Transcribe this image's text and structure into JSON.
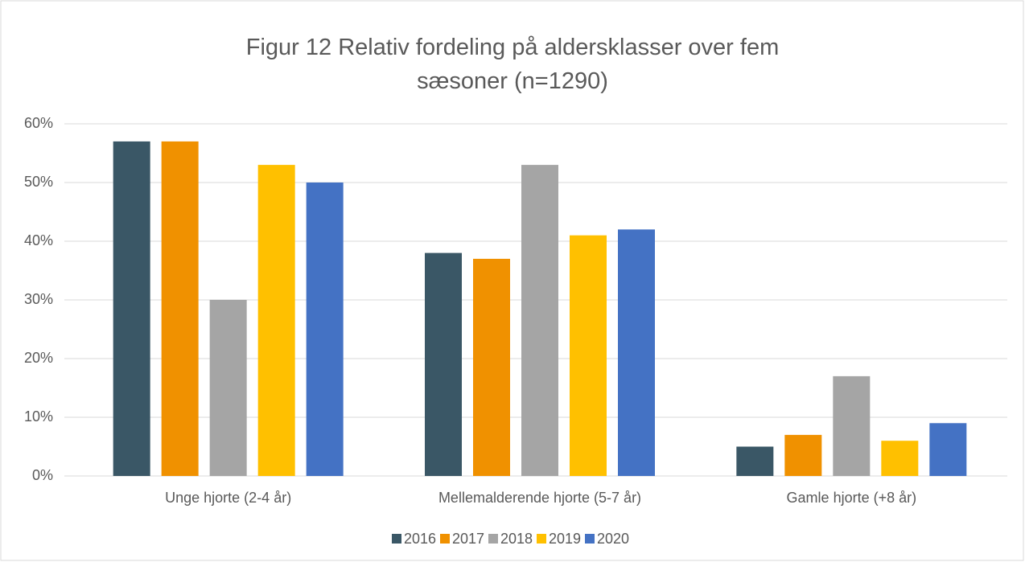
{
  "chart_data": {
    "type": "bar",
    "title": "Figur 12 Relativ fordeling på aldersklasser over fem sæsoner (n=1290)",
    "categories": [
      "Unge hjorte (2-4 år)",
      "Mellemalderende hjorte (5-7 år)",
      "Gamle hjorte (+8 år)"
    ],
    "series": [
      {
        "name": "2016",
        "color": "#3a5766",
        "values": [
          57,
          38,
          5
        ]
      },
      {
        "name": "2017",
        "color": "#f09100",
        "values": [
          57,
          37,
          7
        ]
      },
      {
        "name": "2018",
        "color": "#a5a5a5",
        "values": [
          30,
          53,
          17
        ]
      },
      {
        "name": "2019",
        "color": "#ffc000",
        "values": [
          53,
          41,
          6
        ]
      },
      {
        "name": "2020",
        "color": "#4472c4",
        "values": [
          50,
          42,
          9
        ]
      }
    ],
    "ylim": [
      0,
      60
    ],
    "yticks": [
      {
        "value": 0,
        "label": "0%"
      },
      {
        "value": 10,
        "label": "10%"
      },
      {
        "value": 20,
        "label": "20%"
      },
      {
        "value": 30,
        "label": "30%"
      },
      {
        "value": 40,
        "label": "40%"
      },
      {
        "value": 50,
        "label": "50%"
      },
      {
        "value": 60,
        "label": "60%"
      }
    ],
    "grid": true,
    "legend": "bottom"
  }
}
